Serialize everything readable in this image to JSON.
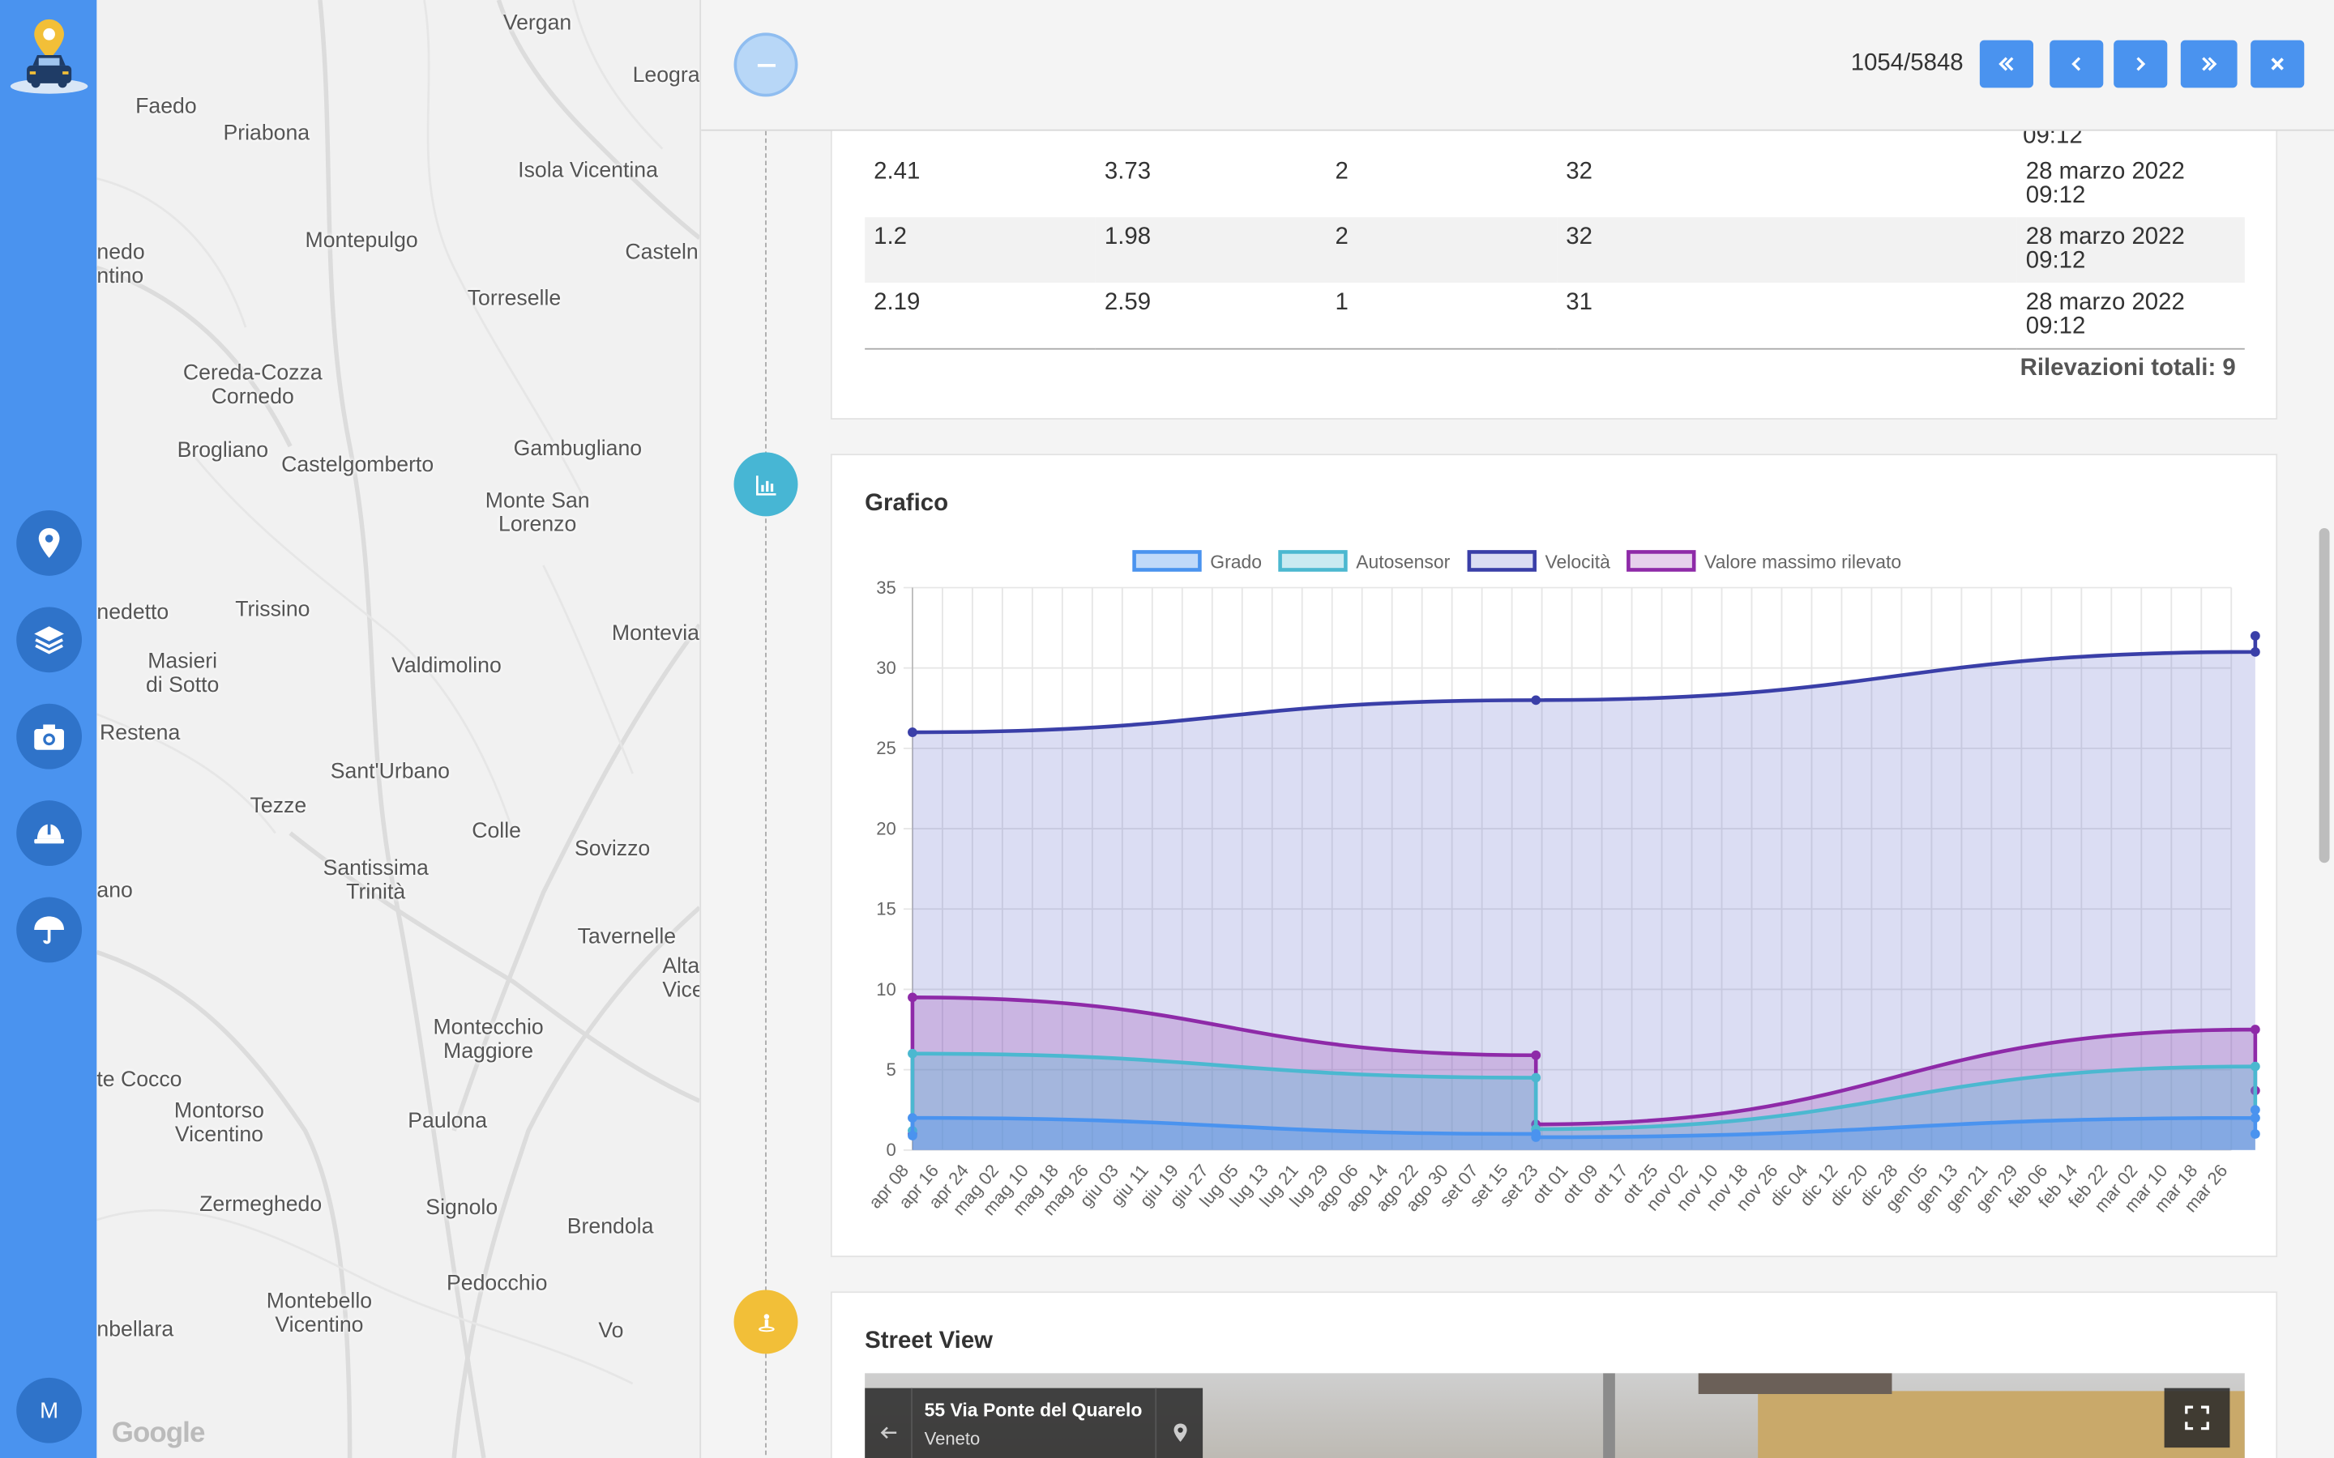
{
  "sidebar": {
    "icons": [
      "location-pin-icon",
      "layers-icon",
      "camera-icon",
      "hard-hat-icon",
      "umbrella-icon"
    ],
    "avatar_initial": "M"
  },
  "map": {
    "places": [
      {
        "name": "Vergan"
      },
      {
        "name": "Leogra"
      },
      {
        "name": "Faedo"
      },
      {
        "name": "Priabona"
      },
      {
        "name": "Isola Vicentina"
      },
      {
        "name": "nedo\nntino"
      },
      {
        "name": "Montepulgo"
      },
      {
        "name": "Casteln"
      },
      {
        "name": "Torreselle"
      },
      {
        "name": "Cereda-Cozza\nCornedo"
      },
      {
        "name": "Brogliano"
      },
      {
        "name": "Castelgomberto"
      },
      {
        "name": "Gambugliano"
      },
      {
        "name": "Monte San\nLorenzo"
      },
      {
        "name": "nedetto"
      },
      {
        "name": "Trissino"
      },
      {
        "name": "Montevia"
      },
      {
        "name": "Masieri\ndi Sotto"
      },
      {
        "name": "Valdimolino"
      },
      {
        "name": "Restena"
      },
      {
        "name": "Sant'Urbano"
      },
      {
        "name": "Tezze"
      },
      {
        "name": "Colle"
      },
      {
        "name": "Sovizzo"
      },
      {
        "name": "Santissima\nTrinità"
      },
      {
        "name": "ano"
      },
      {
        "name": "Tavernelle"
      },
      {
        "name": "Alta\nVice"
      },
      {
        "name": "Montecchio\nMaggiore"
      },
      {
        "name": "te Cocco"
      },
      {
        "name": "Montorso\nVicentino"
      },
      {
        "name": "Paulona"
      },
      {
        "name": "Zermeghedo"
      },
      {
        "name": "Signolo"
      },
      {
        "name": "Brendola"
      },
      {
        "name": "Pedocchio"
      },
      {
        "name": "Montebello\nVicentino"
      },
      {
        "name": "nbellara"
      },
      {
        "name": "Vo"
      }
    ],
    "google_label": "Google"
  },
  "topbar": {
    "counter": "1054/5848",
    "nav_icons": [
      "first-page-icon",
      "previous-icon",
      "next-icon",
      "last-page-icon",
      "close-icon"
    ]
  },
  "table": {
    "rows": [
      {
        "c1": "2.41",
        "c2": "3.73",
        "c3": "2",
        "c4": "32",
        "date": "28 marzo 2022",
        "time": "09:12"
      },
      {
        "c1": "1.2",
        "c2": "1.98",
        "c3": "2",
        "c4": "32",
        "date": "28 marzo 2022",
        "time": "09:12"
      },
      {
        "c1": "2.19",
        "c2": "2.59",
        "c3": "1",
        "c4": "31",
        "date": "28 marzo 2022",
        "time": "09:12"
      }
    ],
    "clipped_time": "09:12",
    "total": "Rilevazioni totali: 9"
  },
  "chart_section": {
    "title": "Grafico"
  },
  "chart_data": {
    "type": "area",
    "title": "",
    "xlabel": "",
    "ylabel": "",
    "ylim": [
      0,
      35
    ],
    "yticks": [
      0,
      5,
      10,
      15,
      20,
      25,
      30,
      35
    ],
    "grid": true,
    "legend_position": "top",
    "categories": [
      "apr 08",
      "apr 16",
      "apr 24",
      "mag 02",
      "mag 10",
      "mag 18",
      "mag 26",
      "giu 03",
      "giu 11",
      "giu 19",
      "giu 27",
      "lug 05",
      "lug 13",
      "lug 21",
      "lug 29",
      "ago 06",
      "ago 14",
      "ago 22",
      "ago 30",
      "set 07",
      "set 15",
      "set 23",
      "ott 01",
      "ott 09",
      "ott 17",
      "ott 25",
      "nov 02",
      "nov 10",
      "nov 18",
      "nov 26",
      "dic 04",
      "dic 12",
      "dic 20",
      "dic 28",
      "gen 05",
      "gen 13",
      "gen 21",
      "gen 29",
      "feb 06",
      "feb 14",
      "feb 22",
      "mar 02",
      "mar 10",
      "mar 18",
      "mar 26"
    ],
    "series": [
      {
        "name": "Grado",
        "color": "#4a93ef",
        "fill": "rgba(74,147,239,0.35)",
        "x": [
          0,
          0,
          20.8,
          20.8,
          20.8,
          44.8,
          44.8,
          44.8
        ],
        "values": [
          0.9,
          2.0,
          1.0,
          1.0,
          0.8,
          2.0,
          1.0,
          2.5
        ]
      },
      {
        "name": "Autosensor",
        "color": "#4bb8d0",
        "fill": "rgba(75,184,208,0.30)",
        "x": [
          0,
          0,
          20.8,
          20.8,
          44.8,
          44.8
        ],
        "values": [
          1.2,
          6.0,
          4.5,
          1.3,
          5.2,
          2.0
        ]
      },
      {
        "name": "Velocità",
        "color": "#3a3fa8",
        "fill": "rgba(90,100,200,0.22)",
        "x": [
          0,
          20.8,
          44.8,
          44.8
        ],
        "values": [
          26,
          28,
          31,
          32
        ]
      },
      {
        "name": "Valore massimo rilevato",
        "color": "#8e2aa8",
        "fill": "rgba(142,42,168,0.22)",
        "x": [
          0,
          0,
          20.8,
          20.8,
          44.8,
          44.8
        ],
        "values": [
          1.0,
          9.5,
          5.9,
          1.6,
          7.5,
          3.7
        ]
      }
    ]
  },
  "streetview": {
    "title": "Street View",
    "address": "55 Via Ponte del Quarelo",
    "region": "Veneto"
  },
  "colors": {
    "sidebar": "#4a93ef",
    "sidebar_button": "#2f73c9",
    "nav_button": "#4a93ef",
    "chart_icon": "#47b6d4",
    "streetview_icon": "#f2bf38"
  }
}
